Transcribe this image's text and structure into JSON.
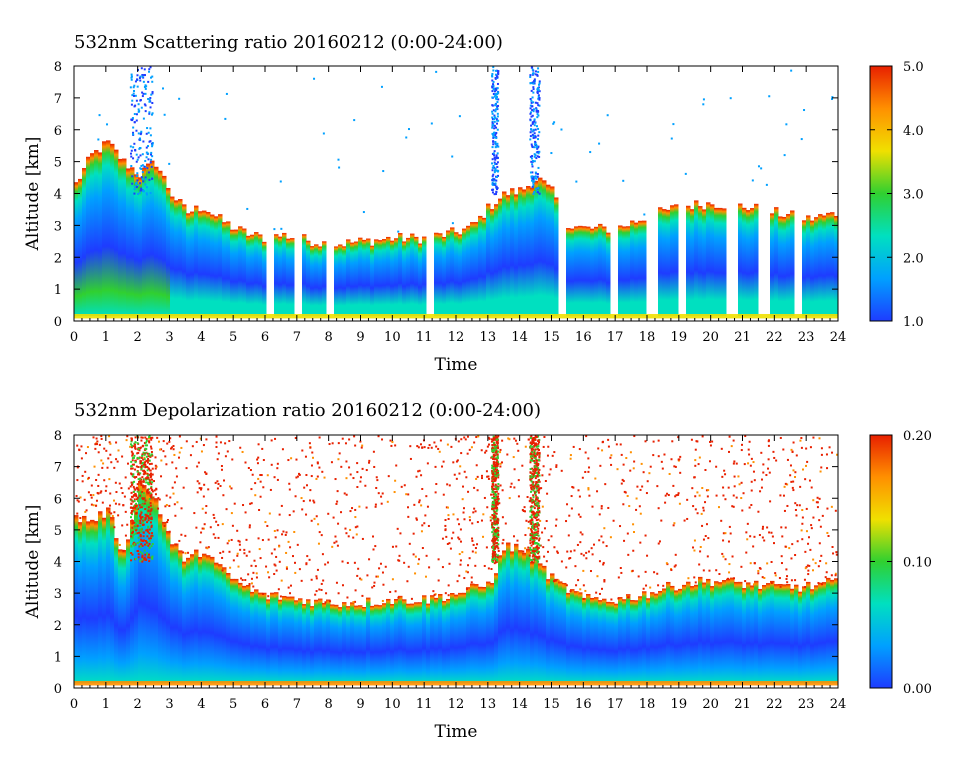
{
  "chart_data": [
    {
      "type": "heatmap",
      "title": "532nm Scattering ratio  20160212 (0:00-24:00)",
      "xlabel": "Time",
      "ylabel": "Altitude [km]",
      "xlim": [
        0,
        24
      ],
      "ylim": [
        0,
        8
      ],
      "x_ticks": [
        "0",
        "1",
        "2",
        "3",
        "4",
        "5",
        "6",
        "7",
        "8",
        "9",
        "10",
        "11",
        "12",
        "13",
        "14",
        "15",
        "16",
        "17",
        "18",
        "19",
        "20",
        "21",
        "22",
        "23",
        "24"
      ],
      "y_ticks": [
        "0",
        "1",
        "2",
        "3",
        "4",
        "5",
        "6",
        "7",
        "8"
      ],
      "colorbar": {
        "min": 1.0,
        "max": 5.0,
        "ticks": [
          "1.0",
          "2.0",
          "3.0",
          "4.0",
          "5.0"
        ],
        "colors": [
          "#1e3cff",
          "#00a0ff",
          "#00e0c0",
          "#30d030",
          "#f0e000",
          "#ff9000",
          "#e82000"
        ]
      },
      "cloud_top_profile_km": [
        [
          0,
          4.3
        ],
        [
          0.5,
          5.2
        ],
        [
          1.0,
          5.6
        ],
        [
          1.5,
          5.0
        ],
        [
          2.0,
          4.6
        ],
        [
          2.5,
          5.0
        ],
        [
          3.0,
          4.0
        ],
        [
          3.5,
          3.4
        ],
        [
          4.0,
          3.6
        ],
        [
          4.5,
          3.2
        ],
        [
          5.0,
          2.9
        ],
        [
          5.5,
          2.7
        ],
        [
          6.0,
          2.6
        ],
        [
          6.5,
          2.7
        ],
        [
          7.0,
          2.6
        ],
        [
          7.5,
          2.5
        ],
        [
          8.0,
          2.4
        ],
        [
          9.0,
          2.5
        ],
        [
          10.0,
          2.6
        ],
        [
          11.0,
          2.6
        ],
        [
          12.0,
          2.8
        ],
        [
          12.5,
          3.0
        ],
        [
          13.0,
          3.6
        ],
        [
          13.5,
          4.0
        ],
        [
          14.0,
          4.1
        ],
        [
          14.5,
          4.5
        ],
        [
          15.0,
          4.0
        ],
        [
          15.5,
          3.0
        ],
        [
          16.0,
          2.9
        ],
        [
          17.0,
          2.9
        ],
        [
          18.0,
          3.3
        ],
        [
          19.0,
          3.6
        ],
        [
          20.0,
          3.7
        ],
        [
          21.0,
          3.6
        ],
        [
          22.0,
          3.4
        ],
        [
          23.0,
          3.2
        ],
        [
          24.0,
          3.4
        ]
      ]
    },
    {
      "type": "heatmap",
      "title": "532nm Depolarization ratio  20160212 (0:00-24:00)",
      "xlabel": "Time",
      "ylabel": "Altitude [km]",
      "xlim": [
        0,
        24
      ],
      "ylim": [
        0,
        8
      ],
      "x_ticks": [
        "0",
        "1",
        "2",
        "3",
        "4",
        "5",
        "6",
        "7",
        "8",
        "9",
        "10",
        "11",
        "12",
        "13",
        "14",
        "15",
        "16",
        "17",
        "18",
        "19",
        "20",
        "21",
        "22",
        "23",
        "24"
      ],
      "y_ticks": [
        "0",
        "1",
        "2",
        "3",
        "4",
        "5",
        "6",
        "7",
        "8"
      ],
      "colorbar": {
        "min": 0.0,
        "max": 0.2,
        "ticks": [
          "0.00",
          "0.10",
          "0.20"
        ],
        "colors": [
          "#1e3cff",
          "#00a0ff",
          "#00e0c0",
          "#30d030",
          "#f0e000",
          "#ff9000",
          "#e82000"
        ]
      },
      "cloud_top_profile_km": [
        [
          0,
          5.4
        ],
        [
          0.5,
          5.3
        ],
        [
          1.0,
          5.6
        ],
        [
          1.5,
          4.2
        ],
        [
          2.0,
          6.5
        ],
        [
          2.5,
          6.0
        ],
        [
          3.0,
          4.6
        ],
        [
          3.5,
          4.0
        ],
        [
          4.0,
          4.4
        ],
        [
          4.5,
          3.8
        ],
        [
          5.0,
          3.4
        ],
        [
          5.5,
          3.1
        ],
        [
          6.0,
          2.9
        ],
        [
          6.5,
          2.9
        ],
        [
          7.0,
          2.8
        ],
        [
          8.0,
          2.7
        ],
        [
          9.0,
          2.7
        ],
        [
          10.0,
          2.8
        ],
        [
          11.0,
          2.8
        ],
        [
          12.0,
          3.0
        ],
        [
          13.0,
          3.3
        ],
        [
          13.5,
          4.5
        ],
        [
          14.0,
          4.4
        ],
        [
          14.5,
          4.0
        ],
        [
          15.0,
          3.4
        ],
        [
          16.0,
          2.8
        ],
        [
          17.0,
          2.8
        ],
        [
          18.0,
          3.0
        ],
        [
          19.0,
          3.3
        ],
        [
          20.0,
          3.4
        ],
        [
          21.0,
          3.3
        ],
        [
          22.0,
          3.2
        ],
        [
          23.0,
          3.2
        ],
        [
          24.0,
          3.4
        ]
      ]
    }
  ]
}
